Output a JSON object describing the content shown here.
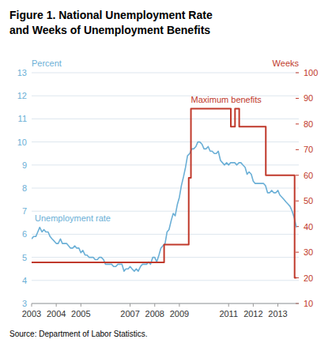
{
  "chart_data": {
    "type": "line",
    "title": "Figure 1. National Unemployment Rate\nand Weeks of Unemployment Benefits",
    "source": "Source: Department of Labor Statistics.",
    "y_label": "Percent",
    "y2_label": "Weeks",
    "grid": true,
    "xlim": [
      2003,
      2013.85
    ],
    "xticks": [
      2003,
      2004,
      2005,
      2007,
      2008,
      2009,
      2011,
      2012,
      2013
    ],
    "ylim": [
      3,
      13
    ],
    "yticks": [
      3,
      4,
      5,
      6,
      7,
      8,
      9,
      10,
      11,
      12,
      13
    ],
    "y2lim": [
      10,
      100
    ],
    "y2ticks": [
      10,
      20,
      30,
      40,
      50,
      60,
      70,
      80,
      90,
      100
    ],
    "series": [
      {
        "name": "Unemployment rate",
        "type": "line",
        "axis": "y",
        "color": "#6aafd6",
        "x": [
          2003.0,
          2003.08,
          2003.17,
          2003.25,
          2003.33,
          2003.42,
          2003.5,
          2003.58,
          2003.67,
          2003.75,
          2003.83,
          2003.92,
          2004.0,
          2004.08,
          2004.17,
          2004.25,
          2004.33,
          2004.42,
          2004.5,
          2004.58,
          2004.67,
          2004.75,
          2004.83,
          2004.92,
          2005.0,
          2005.08,
          2005.17,
          2005.25,
          2005.33,
          2005.42,
          2005.5,
          2005.58,
          2005.67,
          2005.75,
          2005.83,
          2005.92,
          2006.0,
          2006.08,
          2006.17,
          2006.25,
          2006.33,
          2006.42,
          2006.5,
          2006.58,
          2006.67,
          2006.75,
          2006.83,
          2006.92,
          2007.0,
          2007.08,
          2007.17,
          2007.25,
          2007.33,
          2007.42,
          2007.5,
          2007.58,
          2007.67,
          2007.75,
          2007.83,
          2007.92,
          2008.0,
          2008.08,
          2008.17,
          2008.25,
          2008.33,
          2008.42,
          2008.5,
          2008.58,
          2008.67,
          2008.75,
          2008.83,
          2008.92,
          2009.0,
          2009.08,
          2009.17,
          2009.25,
          2009.33,
          2009.42,
          2009.5,
          2009.58,
          2009.67,
          2009.75,
          2009.83,
          2009.92,
          2010.0,
          2010.08,
          2010.17,
          2010.25,
          2010.33,
          2010.42,
          2010.5,
          2010.58,
          2010.67,
          2010.75,
          2010.83,
          2010.92,
          2011.0,
          2011.08,
          2011.17,
          2011.25,
          2011.33,
          2011.42,
          2011.5,
          2011.58,
          2011.67,
          2011.75,
          2011.83,
          2011.92,
          2012.0,
          2012.08,
          2012.17,
          2012.25,
          2012.33,
          2012.42,
          2012.5,
          2012.58,
          2012.67,
          2012.75,
          2012.83,
          2012.92,
          2013.0,
          2013.08,
          2013.17,
          2013.25,
          2013.33,
          2013.42,
          2013.5,
          2013.58,
          2013.67,
          2013.75
        ],
        "values": [
          5.8,
          5.9,
          5.9,
          6.1,
          6.3,
          6.1,
          6.2,
          6.1,
          6.1,
          5.9,
          5.8,
          5.7,
          5.6,
          5.6,
          5.8,
          5.6,
          5.6,
          5.6,
          5.5,
          5.4,
          5.4,
          5.5,
          5.4,
          5.4,
          5.2,
          5.3,
          5.1,
          5.1,
          5.0,
          5.0,
          5.0,
          4.9,
          4.9,
          5.0,
          5.0,
          4.9,
          4.7,
          4.7,
          4.7,
          4.7,
          4.6,
          4.6,
          4.7,
          4.7,
          4.7,
          4.4,
          4.5,
          4.5,
          4.6,
          4.5,
          4.4,
          4.5,
          4.4,
          4.6,
          4.7,
          4.7,
          4.7,
          4.8,
          4.7,
          5.0,
          5.0,
          4.8,
          5.1,
          5.4,
          5.5,
          5.6,
          6.1,
          6.2,
          6.6,
          6.9,
          6.8,
          7.3,
          7.6,
          8.1,
          8.5,
          8.9,
          9.4,
          9.5,
          9.7,
          9.7,
          9.8,
          10.0,
          10.0,
          9.9,
          9.7,
          9.7,
          9.8,
          9.6,
          9.6,
          9.5,
          9.5,
          9.6,
          9.2,
          9.1,
          9.0,
          9.1,
          9.0,
          9.1,
          9.1,
          9.1,
          9.0,
          9.1,
          9.1,
          9.0,
          8.9,
          8.6,
          8.7,
          8.6,
          8.3,
          8.2,
          8.2,
          8.2,
          8.2,
          8.2,
          8.1,
          7.8,
          7.8,
          7.9,
          7.8,
          7.8,
          7.9,
          7.7,
          7.6,
          7.5,
          7.4,
          7.3,
          7.2,
          7.0,
          6.7,
          6.3
        ]
      },
      {
        "name": "Maximum benefits",
        "type": "step",
        "axis": "y2",
        "color": "#c0392b",
        "x": [
          2003.0,
          2003.92,
          2004.0,
          2004.92,
          2005.0,
          2005.92,
          2006.0,
          2006.92,
          2007.0,
          2007.92,
          2008.0,
          2008.37,
          2008.38,
          2008.92,
          2009.0,
          2009.37,
          2009.38,
          2009.46,
          2009.47,
          2009.92,
          2010.0,
          2010.92,
          2011.0,
          2011.08,
          2011.09,
          2011.25,
          2011.26,
          2011.42,
          2011.43,
          2011.92,
          2012.0,
          2012.5,
          2012.51,
          2012.92,
          2013.0,
          2013.67,
          2013.68,
          2013.75
        ],
        "values": [
          26,
          26,
          26,
          26,
          26,
          26,
          26,
          26,
          26,
          26,
          26,
          26,
          33,
          33,
          33,
          33,
          59,
          59,
          86,
          86,
          86,
          86,
          86,
          86,
          79,
          79,
          86,
          86,
          79,
          79,
          79,
          79,
          60,
          60,
          60,
          60,
          20,
          20
        ]
      }
    ]
  }
}
